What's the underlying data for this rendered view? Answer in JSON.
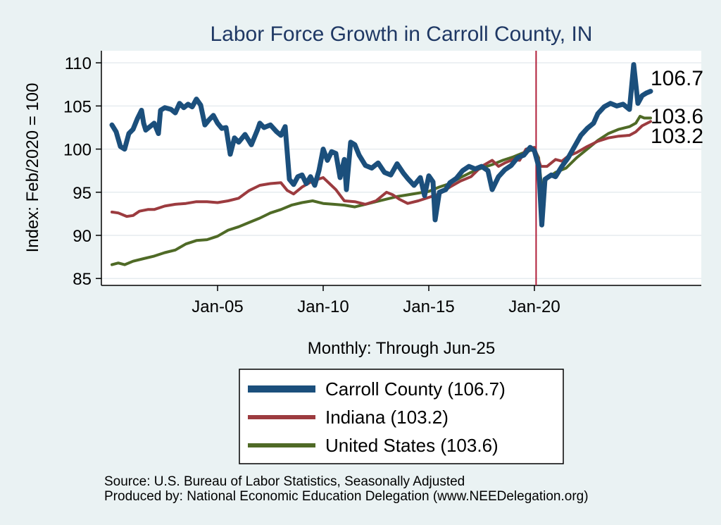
{
  "chart_data": {
    "type": "line",
    "title": "Labor Force Growth in Carroll  County, IN",
    "xlabel": "Monthly: Through Jun-25",
    "ylabel": "Index: Feb/2020 = 100",
    "x_ticks": [
      {
        "date": 2005.0,
        "label": "Jan-05"
      },
      {
        "date": 2010.0,
        "label": "Jan-10"
      },
      {
        "date": 2015.0,
        "label": "Jan-15"
      },
      {
        "date": 2020.0,
        "label": "Jan-20"
      }
    ],
    "y_ticks": [
      85,
      90,
      95,
      100,
      105,
      110
    ],
    "xlim": [
      1999.5,
      2027.9
    ],
    "ylim": [
      84.2,
      111.4
    ],
    "reference_line": {
      "date": 2020.08,
      "color": "#b0203a"
    },
    "end_labels": [
      {
        "series": "Carroll  County",
        "value": "106.7"
      },
      {
        "series": "United States",
        "value": "103.6"
      },
      {
        "series": "Indiana",
        "value": "103.2"
      }
    ],
    "series": [
      {
        "name": "Carroll  County",
        "legend": "Carroll  County (106.7)",
        "color": "#1b4f7c",
        "width": 7,
        "points": [
          [
            2000.0,
            102.8
          ],
          [
            2000.2,
            102.0
          ],
          [
            2000.4,
            100.3
          ],
          [
            2000.6,
            100.0
          ],
          [
            2000.8,
            101.8
          ],
          [
            2001.0,
            102.3
          ],
          [
            2001.2,
            103.5
          ],
          [
            2001.4,
            104.5
          ],
          [
            2001.5,
            103.0
          ],
          [
            2001.6,
            102.2
          ],
          [
            2001.8,
            102.6
          ],
          [
            2002.0,
            103.0
          ],
          [
            2002.2,
            101.8
          ],
          [
            2002.3,
            104.5
          ],
          [
            2002.5,
            104.8
          ],
          [
            2002.8,
            104.6
          ],
          [
            2003.0,
            104.2
          ],
          [
            2003.2,
            105.3
          ],
          [
            2003.4,
            104.8
          ],
          [
            2003.6,
            105.2
          ],
          [
            2003.8,
            104.9
          ],
          [
            2004.0,
            105.8
          ],
          [
            2004.2,
            105.1
          ],
          [
            2004.4,
            102.8
          ],
          [
            2004.6,
            103.4
          ],
          [
            2004.8,
            103.9
          ],
          [
            2005.0,
            103.0
          ],
          [
            2005.2,
            102.4
          ],
          [
            2005.4,
            102.5
          ],
          [
            2005.6,
            99.4
          ],
          [
            2005.8,
            101.3
          ],
          [
            2006.0,
            100.8
          ],
          [
            2006.3,
            101.7
          ],
          [
            2006.6,
            100.5
          ],
          [
            2006.9,
            102.3
          ],
          [
            2007.0,
            103.0
          ],
          [
            2007.2,
            102.5
          ],
          [
            2007.5,
            102.8
          ],
          [
            2007.8,
            102.0
          ],
          [
            2008.0,
            101.6
          ],
          [
            2008.2,
            102.6
          ],
          [
            2008.4,
            96.5
          ],
          [
            2008.6,
            95.9
          ],
          [
            2008.8,
            96.8
          ],
          [
            2009.0,
            97.0
          ],
          [
            2009.2,
            96.0
          ],
          [
            2009.4,
            96.8
          ],
          [
            2009.6,
            95.8
          ],
          [
            2009.8,
            97.5
          ],
          [
            2010.0,
            100.0
          ],
          [
            2010.2,
            98.7
          ],
          [
            2010.4,
            99.7
          ],
          [
            2010.6,
            99.5
          ],
          [
            2010.8,
            96.7
          ],
          [
            2011.0,
            98.8
          ],
          [
            2011.1,
            95.3
          ],
          [
            2011.3,
            100.8
          ],
          [
            2011.5,
            100.5
          ],
          [
            2011.7,
            99.3
          ],
          [
            2012.0,
            98.1
          ],
          [
            2012.3,
            97.8
          ],
          [
            2012.6,
            98.4
          ],
          [
            2012.9,
            97.3
          ],
          [
            2013.2,
            97.0
          ],
          [
            2013.5,
            98.3
          ],
          [
            2013.8,
            97.2
          ],
          [
            2014.0,
            96.6
          ],
          [
            2014.3,
            95.8
          ],
          [
            2014.6,
            96.7
          ],
          [
            2014.8,
            94.6
          ],
          [
            2015.0,
            96.9
          ],
          [
            2015.2,
            96.2
          ],
          [
            2015.3,
            91.8
          ],
          [
            2015.5,
            95.0
          ],
          [
            2015.8,
            95.3
          ],
          [
            2016.0,
            96.1
          ],
          [
            2016.3,
            96.6
          ],
          [
            2016.6,
            97.5
          ],
          [
            2016.9,
            98.0
          ],
          [
            2017.2,
            97.7
          ],
          [
            2017.5,
            98.0
          ],
          [
            2017.8,
            97.5
          ],
          [
            2018.0,
            95.3
          ],
          [
            2018.3,
            96.8
          ],
          [
            2018.6,
            97.6
          ],
          [
            2018.9,
            98.1
          ],
          [
            2019.2,
            99.0
          ],
          [
            2019.5,
            99.3
          ],
          [
            2019.8,
            100.2
          ],
          [
            2020.0,
            99.8
          ],
          [
            2020.2,
            98.0
          ],
          [
            2020.35,
            91.2
          ],
          [
            2020.5,
            96.5
          ],
          [
            2020.8,
            97.0
          ],
          [
            2021.0,
            96.8
          ],
          [
            2021.3,
            98.0
          ],
          [
            2021.6,
            99.0
          ],
          [
            2021.9,
            100.3
          ],
          [
            2022.2,
            101.6
          ],
          [
            2022.5,
            102.4
          ],
          [
            2022.8,
            103.0
          ],
          [
            2023.0,
            104.1
          ],
          [
            2023.3,
            104.9
          ],
          [
            2023.6,
            105.3
          ],
          [
            2023.9,
            105.0
          ],
          [
            2024.2,
            105.2
          ],
          [
            2024.5,
            104.6
          ],
          [
            2024.7,
            109.8
          ],
          [
            2024.9,
            105.3
          ],
          [
            2025.1,
            106.2
          ],
          [
            2025.3,
            106.5
          ],
          [
            2025.5,
            106.7
          ]
        ]
      },
      {
        "name": "Indiana",
        "legend": "Indiana (103.2)",
        "color": "#9c3b3f",
        "width": 4,
        "points": [
          [
            2000.0,
            92.7
          ],
          [
            2000.3,
            92.6
          ],
          [
            2000.7,
            92.2
          ],
          [
            2001.0,
            92.3
          ],
          [
            2001.3,
            92.8
          ],
          [
            2001.7,
            93.0
          ],
          [
            2002.0,
            93.0
          ],
          [
            2002.5,
            93.4
          ],
          [
            2003.0,
            93.6
          ],
          [
            2003.5,
            93.7
          ],
          [
            2004.0,
            93.9
          ],
          [
            2004.5,
            93.9
          ],
          [
            2005.0,
            93.8
          ],
          [
            2005.5,
            94.0
          ],
          [
            2006.0,
            94.3
          ],
          [
            2006.5,
            95.2
          ],
          [
            2007.0,
            95.8
          ],
          [
            2007.5,
            96.0
          ],
          [
            2008.0,
            96.1
          ],
          [
            2008.3,
            95.2
          ],
          [
            2008.6,
            94.8
          ],
          [
            2009.0,
            95.6
          ],
          [
            2009.5,
            96.3
          ],
          [
            2010.0,
            96.7
          ],
          [
            2010.3,
            96.0
          ],
          [
            2010.6,
            95.3
          ],
          [
            2011.0,
            94.0
          ],
          [
            2011.5,
            93.9
          ],
          [
            2012.0,
            93.6
          ],
          [
            2012.5,
            94.0
          ],
          [
            2013.0,
            95.0
          ],
          [
            2013.3,
            94.7
          ],
          [
            2013.6,
            94.2
          ],
          [
            2014.0,
            93.7
          ],
          [
            2014.5,
            94.0
          ],
          [
            2015.0,
            94.4
          ],
          [
            2015.5,
            94.8
          ],
          [
            2016.0,
            95.6
          ],
          [
            2016.5,
            96.3
          ],
          [
            2017.0,
            96.8
          ],
          [
            2017.5,
            98.0
          ],
          [
            2018.0,
            98.7
          ],
          [
            2018.3,
            98.0
          ],
          [
            2018.6,
            98.4
          ],
          [
            2019.0,
            98.8
          ],
          [
            2019.3,
            98.7
          ],
          [
            2019.6,
            100.0
          ],
          [
            2020.0,
            100.2
          ],
          [
            2020.3,
            98.0
          ],
          [
            2020.6,
            98.0
          ],
          [
            2021.0,
            98.8
          ],
          [
            2021.3,
            98.6
          ],
          [
            2021.6,
            99.2
          ],
          [
            2022.0,
            99.6
          ],
          [
            2022.5,
            100.3
          ],
          [
            2023.0,
            100.9
          ],
          [
            2023.5,
            101.3
          ],
          [
            2024.0,
            101.5
          ],
          [
            2024.5,
            101.6
          ],
          [
            2024.8,
            102.0
          ],
          [
            2025.1,
            102.7
          ],
          [
            2025.5,
            103.2
          ]
        ]
      },
      {
        "name": "United States",
        "legend": "United States (103.6)",
        "color": "#4f6a26",
        "width": 4,
        "points": [
          [
            2000.0,
            86.6
          ],
          [
            2000.3,
            86.8
          ],
          [
            2000.6,
            86.6
          ],
          [
            2001.0,
            87.0
          ],
          [
            2001.5,
            87.3
          ],
          [
            2002.0,
            87.6
          ],
          [
            2002.5,
            88.0
          ],
          [
            2003.0,
            88.3
          ],
          [
            2003.5,
            89.0
          ],
          [
            2004.0,
            89.4
          ],
          [
            2004.5,
            89.5
          ],
          [
            2005.0,
            89.9
          ],
          [
            2005.5,
            90.6
          ],
          [
            2006.0,
            91.0
          ],
          [
            2006.5,
            91.5
          ],
          [
            2007.0,
            92.0
          ],
          [
            2007.5,
            92.6
          ],
          [
            2008.0,
            93.0
          ],
          [
            2008.5,
            93.5
          ],
          [
            2009.0,
            93.8
          ],
          [
            2009.5,
            94.0
          ],
          [
            2010.0,
            93.7
          ],
          [
            2010.5,
            93.6
          ],
          [
            2011.0,
            93.5
          ],
          [
            2011.5,
            93.3
          ],
          [
            2012.0,
            93.6
          ],
          [
            2012.5,
            93.9
          ],
          [
            2013.0,
            94.2
          ],
          [
            2013.5,
            94.5
          ],
          [
            2014.0,
            94.7
          ],
          [
            2014.5,
            94.9
          ],
          [
            2015.0,
            95.1
          ],
          [
            2015.5,
            95.6
          ],
          [
            2016.0,
            96.0
          ],
          [
            2016.5,
            96.7
          ],
          [
            2017.0,
            97.3
          ],
          [
            2017.5,
            97.8
          ],
          [
            2018.0,
            98.2
          ],
          [
            2018.5,
            98.7
          ],
          [
            2019.0,
            99.1
          ],
          [
            2019.5,
            99.6
          ],
          [
            2020.0,
            100.0
          ],
          [
            2020.2,
            99.0
          ],
          [
            2020.35,
            95.4
          ],
          [
            2020.6,
            96.6
          ],
          [
            2021.0,
            97.3
          ],
          [
            2021.5,
            97.8
          ],
          [
            2022.0,
            99.0
          ],
          [
            2022.5,
            100.0
          ],
          [
            2023.0,
            101.0
          ],
          [
            2023.5,
            101.8
          ],
          [
            2024.0,
            102.3
          ],
          [
            2024.5,
            102.6
          ],
          [
            2024.8,
            103.0
          ],
          [
            2025.0,
            103.8
          ],
          [
            2025.2,
            103.6
          ],
          [
            2025.5,
            103.6
          ]
        ]
      }
    ]
  },
  "notes": {
    "source": "Source: U.S. Bureau of Labor Statistics, Seasonally Adjusted",
    "produced_by": "Produced by: National Economic Education Delegation (www.NEEDelegation.org)"
  }
}
